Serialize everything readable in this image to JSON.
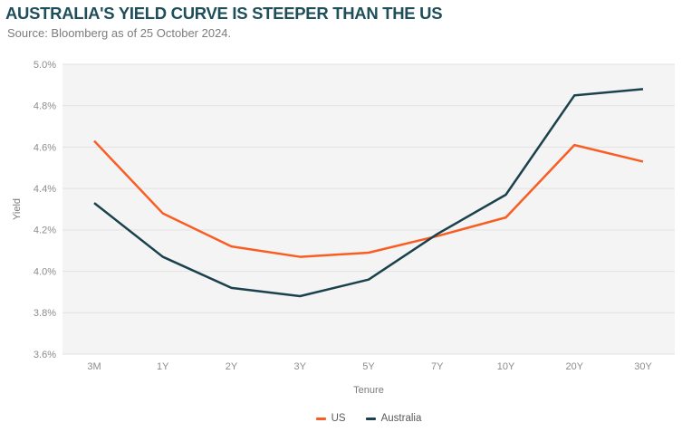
{
  "header": {
    "title": "AUSTRALIA'S YIELD CURVE IS STEEPER THAN THE US",
    "source": "Source: Bloomberg as of 25 October 2024."
  },
  "chart_data": {
    "type": "line",
    "title": "AUSTRALIA'S YIELD CURVE IS STEEPER THAN THE US",
    "xlabel": "Tenure",
    "ylabel": "Yield",
    "categories": [
      "3M",
      "1Y",
      "2Y",
      "3Y",
      "5Y",
      "7Y",
      "10Y",
      "20Y",
      "30Y"
    ],
    "series": [
      {
        "name": "US",
        "color": "#F95D22",
        "values": [
          4.63,
          4.28,
          4.12,
          4.07,
          4.09,
          4.17,
          4.26,
          4.61,
          4.53
        ]
      },
      {
        "name": "Australia",
        "color": "#1B414C",
        "values": [
          4.33,
          4.07,
          3.92,
          3.88,
          3.96,
          4.18,
          4.37,
          4.85,
          4.88
        ]
      }
    ],
    "ylim": [
      3.6,
      5.0
    ],
    "ytick_step": 0.2,
    "yticks": [
      "3.6%",
      "3.8%",
      "4.0%",
      "4.2%",
      "4.4%",
      "4.6%",
      "4.8%",
      "5.0%"
    ],
    "grid": "horizontal",
    "legend_position": "bottom-center"
  },
  "colors": {
    "title_text": "#1D4E59",
    "source_text": "#7C7C7C",
    "plot_bg": "#F4F4F4",
    "gridline": "#E2E2E2",
    "tick_label": "#8C8C8C",
    "axis_label": "#7A7A7A",
    "legend_text": "#5A5A5A"
  }
}
